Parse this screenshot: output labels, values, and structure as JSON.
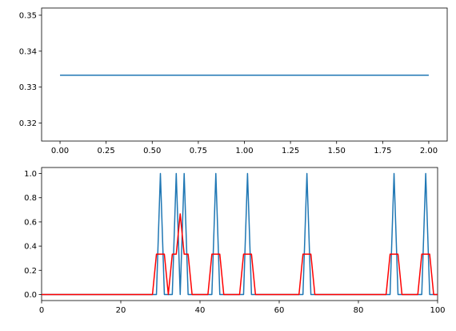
{
  "chart_data": [
    {
      "type": "line",
      "title": "",
      "xlabel": "",
      "ylabel": "",
      "xlim": [
        -0.1,
        2.1
      ],
      "ylim": [
        0.315,
        0.352
      ],
      "x_ticks": [
        0.0,
        0.25,
        0.5,
        0.75,
        1.0,
        1.25,
        1.5,
        1.75,
        2.0
      ],
      "x_tick_labels": [
        "0.00",
        "0.25",
        "0.50",
        "0.75",
        "1.00",
        "1.25",
        "1.50",
        "1.75",
        "2.00"
      ],
      "y_ticks": [
        0.32,
        0.33,
        0.34,
        0.35
      ],
      "y_tick_labels": [
        "0.32",
        "0.33",
        "0.34",
        "0.35"
      ],
      "grid": false,
      "series": [
        {
          "color": "#1f77b4",
          "x": [
            0,
            1,
            2
          ],
          "y": [
            0.3333,
            0.3333,
            0.3333
          ]
        }
      ]
    },
    {
      "type": "line",
      "title": "",
      "xlabel": "",
      "ylabel": "",
      "xlim": [
        0,
        100
      ],
      "ylim": [
        -0.05,
        1.05
      ],
      "x_ticks": [
        0,
        20,
        40,
        60,
        80,
        100
      ],
      "x_tick_labels": [
        "0",
        "20",
        "40",
        "60",
        "80",
        "100"
      ],
      "y_ticks": [
        0.0,
        0.2,
        0.4,
        0.6,
        0.8,
        1.0
      ],
      "y_tick_labels": [
        "0.0",
        "0.2",
        "0.4",
        "0.6",
        "0.8",
        "1.0"
      ],
      "grid": false,
      "series": [
        {
          "color": "#1f77b4",
          "spike_positions": [
            30,
            34,
            36,
            44,
            52,
            67,
            89,
            97
          ]
        },
        {
          "color": "#ff0000",
          "smoothing_window": 3
        }
      ]
    }
  ]
}
